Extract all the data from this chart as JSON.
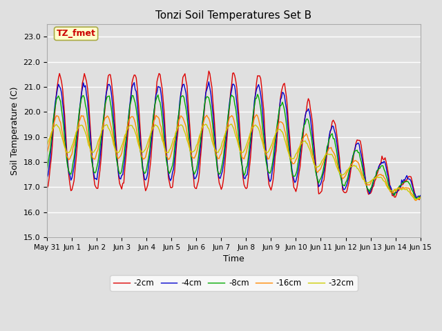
{
  "title": "Tonzi Soil Temperatures Set B",
  "xlabel": "Time",
  "ylabel": "Soil Temperature (C)",
  "ylim": [
    15.0,
    23.5
  ],
  "yticks": [
    15.0,
    16.0,
    17.0,
    18.0,
    19.0,
    20.0,
    21.0,
    22.0,
    23.0
  ],
  "xtick_labels": [
    "May 31",
    "Jun 1",
    "Jun 2",
    "Jun 3",
    "Jun 4",
    "Jun 5",
    "Jun 6",
    "Jun 7",
    "Jun 8",
    "Jun 9",
    "Jun 10",
    "Jun 11",
    "Jun 12",
    "Jun 13",
    "Jun 14",
    "Jun 15"
  ],
  "legend_labels": [
    "-2cm",
    "-4cm",
    "-8cm",
    "-16cm",
    "-32cm"
  ],
  "legend_colors": [
    "#dd0000",
    "#0000cc",
    "#00aa00",
    "#ff8800",
    "#cccc00"
  ],
  "annotation_text": "TZ_fmet",
  "annotation_color": "#cc0000",
  "annotation_bg": "#ffffcc",
  "bg_color": "#e0e0e0",
  "grid_color": "#ffffff"
}
